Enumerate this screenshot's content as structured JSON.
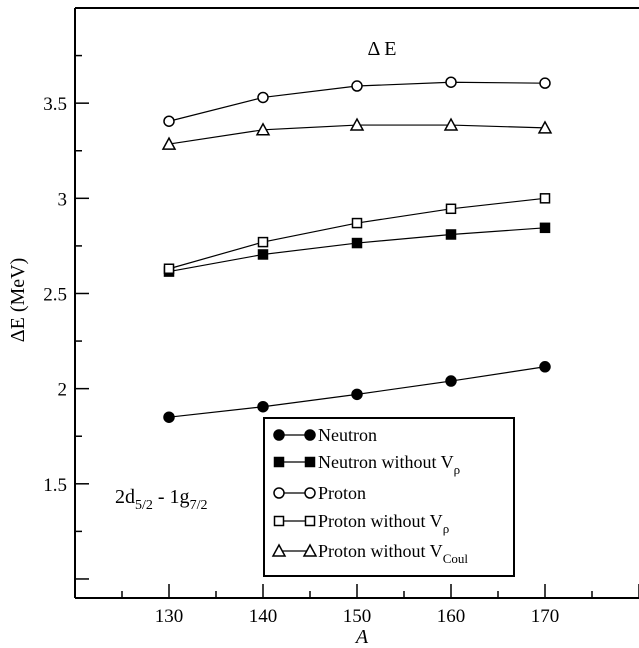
{
  "chart_data": {
    "type": "line",
    "title": "Δ E",
    "xlabel": "A",
    "ylabel": "ΔE (MeV)",
    "annotation": {
      "main": "2d",
      "sub1": "5/2",
      "mid": " - 1g",
      "sub2": "7/2"
    },
    "xlim": [
      120,
      180
    ],
    "ylim": [
      0.9,
      4.0
    ],
    "x_ticks": [
      130,
      140,
      150,
      160,
      170
    ],
    "y_ticks_labeled": [
      1.5,
      2,
      2.5,
      3,
      3.5
    ],
    "y_tick_labels": [
      "1.5",
      "2",
      "2.5",
      "3",
      "3.5"
    ],
    "x_tick_labels": [
      "130",
      "140",
      "150",
      "160",
      "170"
    ],
    "legend_position": "bottom-right",
    "x": [
      130,
      140,
      150,
      160,
      170
    ],
    "series": [
      {
        "name": "Neutron",
        "name_sub": "",
        "marker": "circle-filled",
        "values": [
          1.85,
          1.905,
          1.97,
          2.04,
          2.115
        ]
      },
      {
        "name": "Neutron without V",
        "name_sub": "ρ",
        "marker": "square-filled",
        "values": [
          2.615,
          2.705,
          2.765,
          2.81,
          2.845
        ]
      },
      {
        "name": "Proton",
        "name_sub": "",
        "marker": "circle-open",
        "values": [
          3.405,
          3.53,
          3.59,
          3.61,
          3.605
        ]
      },
      {
        "name": "Proton without V",
        "name_sub": "ρ",
        "marker": "square-open",
        "values": [
          2.63,
          2.77,
          2.87,
          2.945,
          3.0
        ]
      },
      {
        "name": "Proton without V",
        "name_sub": "Coul",
        "marker": "triangle-open",
        "values": [
          3.285,
          3.36,
          3.385,
          3.385,
          3.37
        ]
      }
    ]
  }
}
